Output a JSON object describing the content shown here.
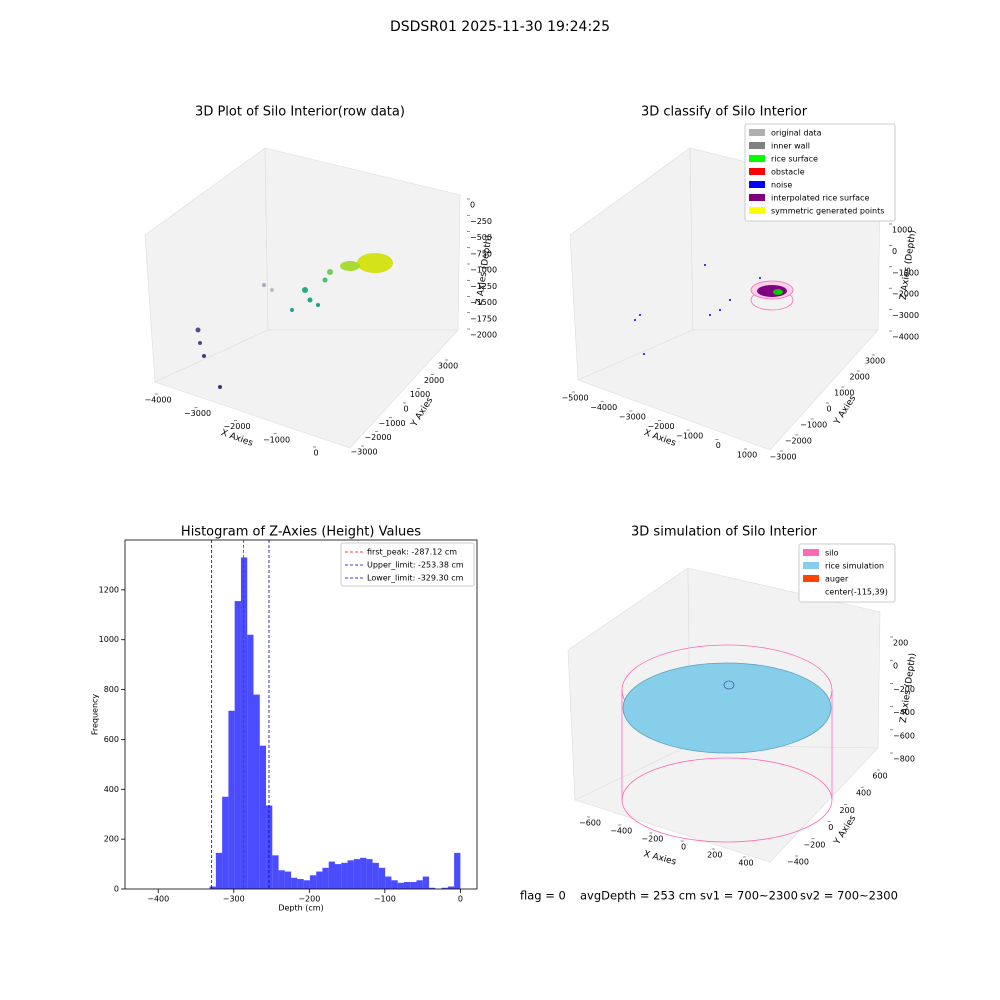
{
  "title": "DSDSR01 2025-11-30 19:24:25",
  "footer": [
    "flag = 0",
    "avgDepth = 253 cm",
    "sv1 = 700~2300",
    "sv2 = 700~2300"
  ],
  "chart_data": [
    {
      "type": "scatter3d",
      "title": "3D Plot of Silo Interior(row data)",
      "xlabel": "X Axies",
      "ylabel": "Y Axies",
      "zlabel": "Z Axies (Depth)",
      "xticks": [
        {
          "value": -4000,
          "label": "−4000"
        },
        {
          "value": -3000,
          "label": "−3000"
        },
        {
          "value": -2000,
          "label": "−2000"
        },
        {
          "value": -1000,
          "label": "−1000"
        },
        0
      ],
      "yticks": [
        {
          "value": -3000,
          "label": "−3000"
        },
        {
          "value": -2000,
          "label": "−2000"
        },
        {
          "value": -1000,
          "label": "−1000"
        },
        0,
        1000,
        2000,
        3000
      ],
      "zticks": [
        0,
        {
          "value": -250,
          "label": "−250"
        },
        {
          "value": -500,
          "label": "−500"
        },
        {
          "value": -750,
          "label": "−750"
        },
        {
          "value": -1000,
          "label": "−1000"
        },
        {
          "value": -1250,
          "label": "−1250"
        },
        {
          "value": -1500,
          "label": "−1500"
        },
        {
          "value": -1750,
          "label": "−1750"
        },
        {
          "value": -2000,
          "label": "−2000"
        }
      ]
    },
    {
      "type": "classify3d",
      "title": "3D classify of Silo Interior",
      "xlabel": "X Axies",
      "ylabel": "Y Axies",
      "zlabel": "Z Axies (Depth)",
      "xticks": [
        {
          "value": -5000,
          "label": "−5000"
        },
        {
          "value": -4000,
          "label": "−4000"
        },
        {
          "value": -3000,
          "label": "−3000"
        },
        {
          "value": -2000,
          "label": "−2000"
        },
        {
          "value": -1000,
          "label": "−1000"
        },
        0,
        1000
      ],
      "yticks": [
        {
          "value": -3000,
          "label": "−3000"
        },
        {
          "value": -2000,
          "label": "−2000"
        },
        {
          "value": -1000,
          "label": "−1000"
        },
        0,
        1000,
        2000,
        3000
      ],
      "zticks": [
        1000,
        0,
        {
          "value": -1000,
          "label": "−1000"
        },
        {
          "value": -2000,
          "label": "−2000"
        },
        {
          "value": -3000,
          "label": "−3000"
        },
        {
          "value": -4000,
          "label": "−4000"
        }
      ],
      "legend": [
        {
          "name": "original data",
          "color": "#b0b0b0"
        },
        {
          "name": "inner wall",
          "color": "#808080"
        },
        {
          "name": "rice surface",
          "color": "#00ff00"
        },
        {
          "name": "obstacle",
          "color": "#ff0000"
        },
        {
          "name": "noise",
          "color": "#0000ff"
        },
        {
          "name": "interpolated rice surface",
          "color": "#800080"
        },
        {
          "name": "symmetric generated points",
          "color": "#ffff00"
        }
      ]
    },
    {
      "type": "histogram",
      "title": "Histogram of Z-Axies (Height) Values",
      "xlabel": "Depth (cm)",
      "ylabel": "Frequency",
      "color": "#0000ff",
      "bins": [
        -332,
        -323.7,
        -315.4,
        -307.1,
        -298.8,
        -290.5,
        -282.2,
        -273.9,
        -265.6,
        -257.3,
        -249,
        -240.7,
        -232.4,
        -224.1,
        -215.8,
        -207.5,
        -199.2,
        -190.9,
        -182.6,
        -174.3,
        -166,
        -157.7,
        -149.4,
        -141.1,
        -132.8,
        -124.5,
        -116.2,
        -107.9,
        -99.6,
        -91.3,
        -83,
        -74.7,
        -66.4,
        -58.1,
        -49.8,
        -41.5,
        -33.2,
        -24.9,
        -16.6,
        -8.3,
        0
      ],
      "counts": [
        10,
        145,
        370,
        715,
        1155,
        1330,
        1020,
        780,
        575,
        335,
        135,
        75,
        70,
        45,
        40,
        35,
        55,
        70,
        85,
        110,
        100,
        105,
        115,
        120,
        125,
        120,
        105,
        85,
        50,
        35,
        25,
        28,
        28,
        35,
        50,
        5,
        0,
        5,
        10,
        145
      ],
      "xlim": [
        -444,
        22
      ],
      "ylim": [
        0,
        1400
      ],
      "xticks": [
        {
          "value": -400,
          "label": "−400"
        },
        {
          "value": -300,
          "label": "−300"
        },
        {
          "value": -200,
          "label": "−200"
        },
        {
          "value": -100,
          "label": "−100"
        },
        0
      ],
      "yticks": [
        0,
        200,
        400,
        600,
        800,
        1000,
        1200
      ],
      "vlines": [
        {
          "name": "first_peak: -287.12 cm",
          "value": -287.12,
          "color": "#ff0000"
        },
        {
          "name": "Upper_limit: -253.38 cm",
          "value": -253.38,
          "color": "#0000aa"
        },
        {
          "name": "Lower_limit: -329.30 cm",
          "value": -329.3,
          "color": "#0000aa"
        }
      ],
      "legend_loc": "upper right"
    },
    {
      "type": "surface3d",
      "title": "3D simulation of Silo Interior",
      "xlabel": "X Axies",
      "ylabel": "Y Axies",
      "zlabel": "Z Axies (Depth)",
      "xticks": [
        {
          "value": -600,
          "label": "−600"
        },
        {
          "value": -400,
          "label": "−400"
        },
        {
          "value": -200,
          "label": "−200"
        },
        0,
        200,
        400
      ],
      "yticks": [
        {
          "value": -400,
          "label": "−400"
        },
        {
          "value": -200,
          "label": "−200"
        },
        0,
        200,
        400,
        600
      ],
      "zticks": [
        200,
        0,
        {
          "value": -200,
          "label": "−200"
        },
        {
          "value": -400,
          "label": "−400"
        },
        {
          "value": -600,
          "label": "−600"
        },
        {
          "value": -800,
          "label": "−800"
        }
      ],
      "legend": [
        {
          "name": "silo",
          "color": "#ff69b4"
        },
        {
          "name": "rice simulation",
          "color": "#87ceeb"
        },
        {
          "name": "auger",
          "color": "#ff4500"
        },
        {
          "name": "center(-115,39)",
          "color": null
        }
      ]
    }
  ]
}
